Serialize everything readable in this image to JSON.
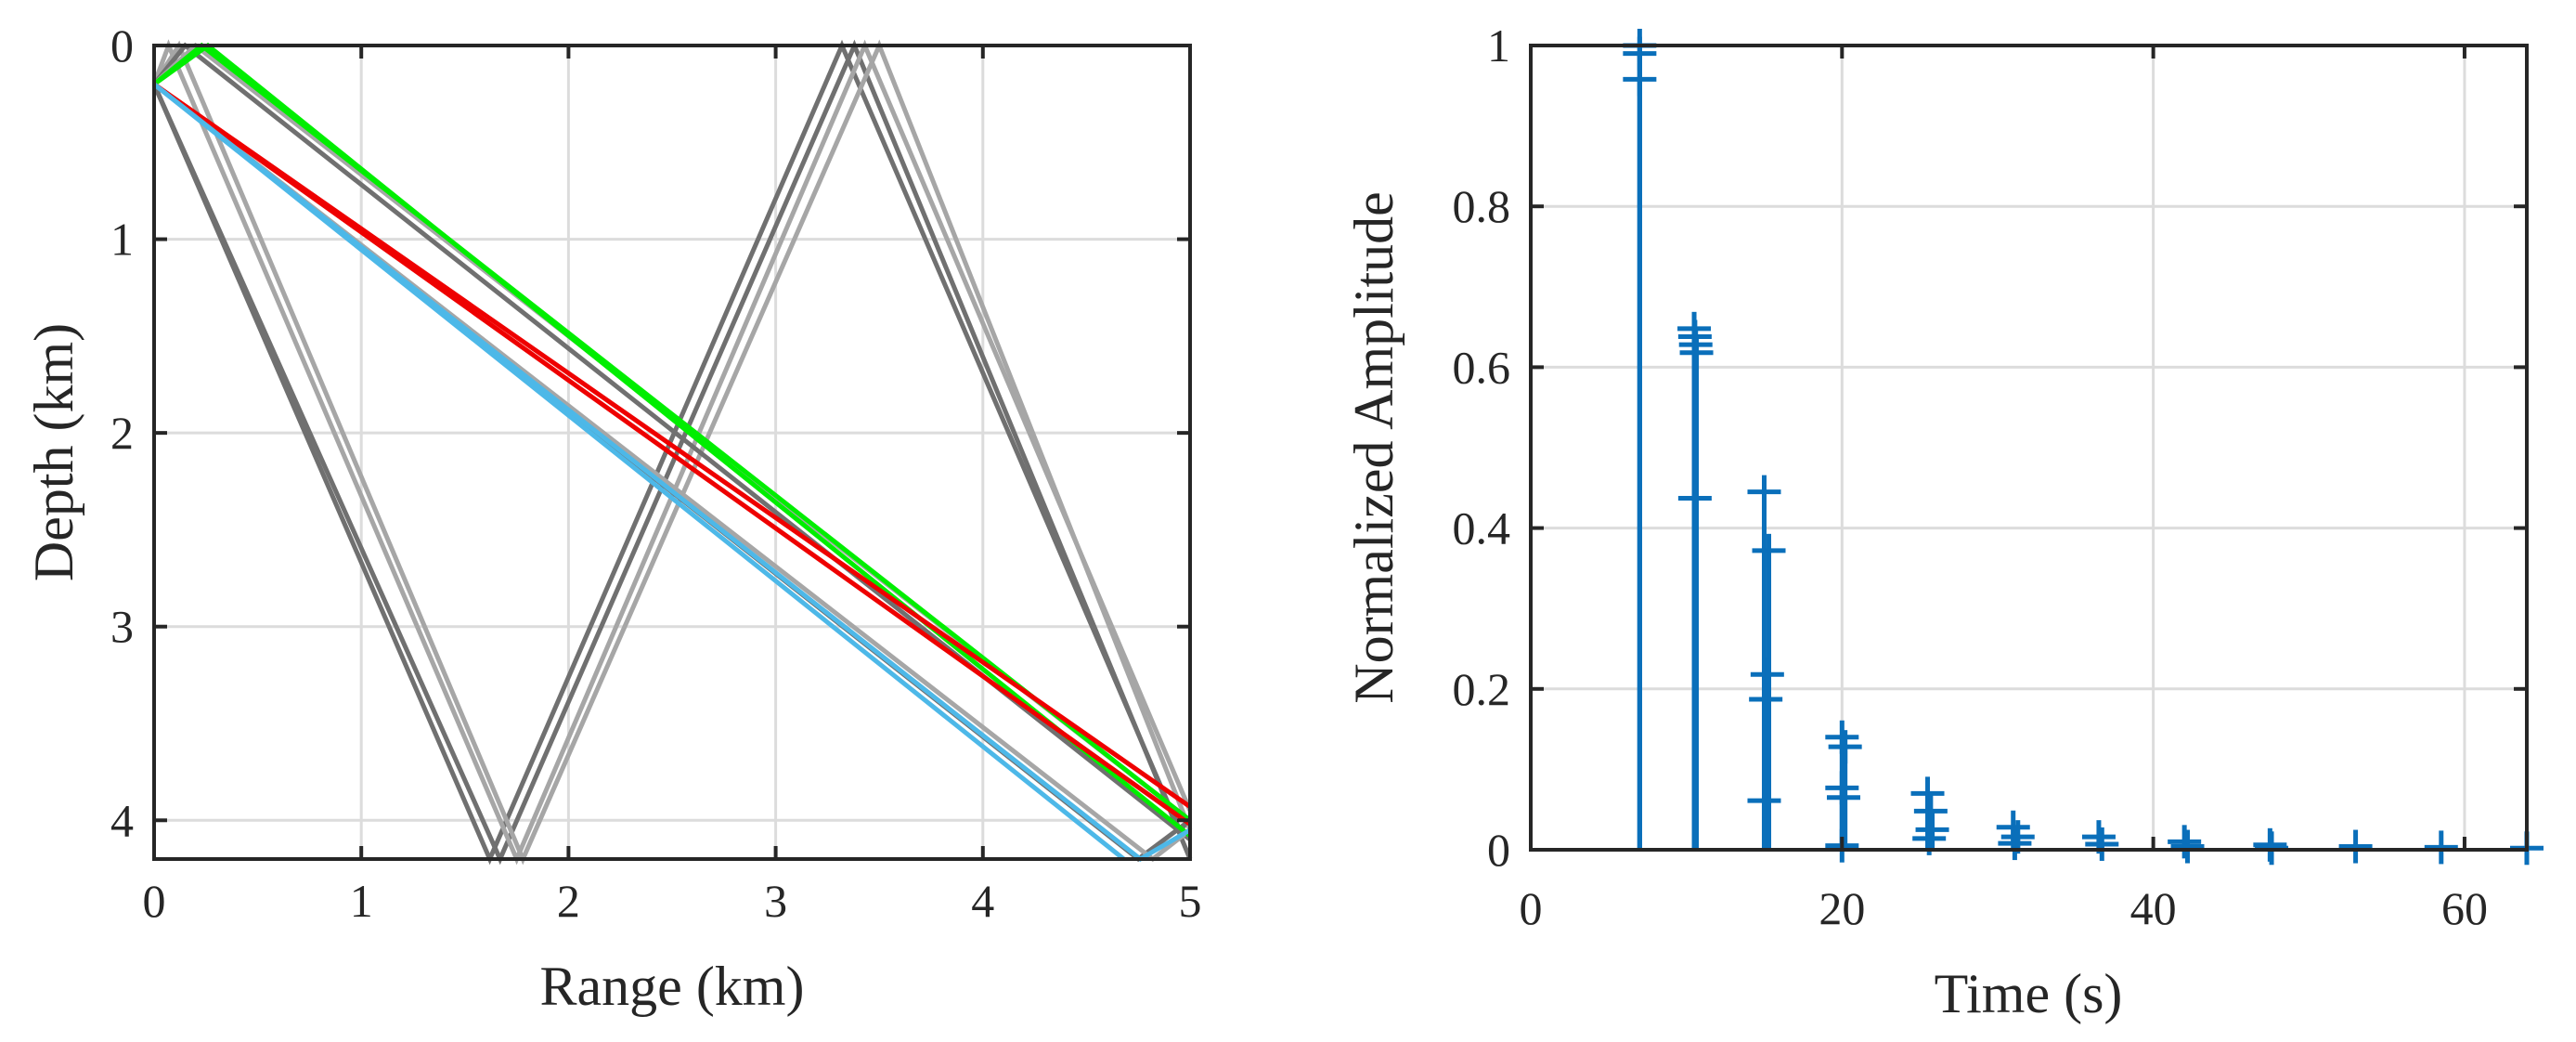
{
  "chart_data": [
    {
      "type": "line",
      "title": "",
      "xlabel": "Range (km)",
      "ylabel": "Depth (km)",
      "xlim": [
        0,
        5
      ],
      "ylim": [
        0,
        4.2
      ],
      "y_reversed": true,
      "grid": true,
      "xticks": [
        "0",
        "1",
        "2",
        "3",
        "4",
        "5"
      ],
      "yticks": [
        "0",
        "1",
        "2",
        "3",
        "4"
      ],
      "colors": {
        "dark_gray": "#707070",
        "light_gray": "#a6a6a6",
        "green": "#00ee00",
        "red": "#ee0000",
        "cyan": "#4db8e8"
      },
      "series": [
        {
          "color": "#707070",
          "x": [
            0,
            1.62,
            3.32,
            4.95,
            5.0
          ],
          "y": [
            0.2,
            4.2,
            0,
            4.05,
            4.0
          ]
        },
        {
          "color": "#707070",
          "x": [
            0,
            1.67,
            3.38,
            5.0
          ],
          "y": [
            0.2,
            4.2,
            0,
            4.2
          ]
        },
        {
          "color": "#a6a6a6",
          "x": [
            0,
            0.07,
            1.75,
            3.43,
            5.0
          ],
          "y": [
            0.2,
            0,
            4.2,
            0,
            3.95
          ]
        },
        {
          "color": "#a6a6a6",
          "x": [
            0,
            0.12,
            1.78,
            3.5,
            5.0
          ],
          "y": [
            0.2,
            0,
            4.2,
            0,
            4.05
          ]
        },
        {
          "color": "#707070",
          "x": [
            0,
            0.15,
            5.0
          ],
          "y": [
            0.2,
            0,
            4.1
          ]
        },
        {
          "color": "#a6a6a6",
          "x": [
            0,
            0.2,
            5.0
          ],
          "y": [
            0.2,
            0,
            4.0
          ]
        },
        {
          "color": "#707070",
          "x": [
            0,
            4.75,
            5.0
          ],
          "y": [
            0.2,
            4.2,
            4.0
          ]
        },
        {
          "color": "#a6a6a6",
          "x": [
            0,
            4.82,
            5.0
          ],
          "y": [
            0.2,
            4.2,
            4.05
          ]
        },
        {
          "color": "#00ee00",
          "x": [
            0,
            0.23,
            5.0
          ],
          "y": [
            0.2,
            0,
            4.0
          ]
        },
        {
          "color": "#00ee00",
          "x": [
            0,
            0.26,
            5.0
          ],
          "y": [
            0.2,
            0,
            4.08
          ]
        },
        {
          "color": "#ee0000",
          "x": [
            0,
            5.0
          ],
          "y": [
            0.2,
            3.93
          ]
        },
        {
          "color": "#ee0000",
          "x": [
            0,
            5.0
          ],
          "y": [
            0.2,
            4.02
          ]
        },
        {
          "color": "#4db8e8",
          "x": [
            0,
            4.68
          ],
          "y": [
            0.2,
            4.2
          ]
        },
        {
          "color": "#4db8e8",
          "x": [
            0,
            4.76,
            5.0
          ],
          "y": [
            0.2,
            4.2,
            4.05
          ]
        }
      ]
    },
    {
      "type": "scatter",
      "style": "stem",
      "marker": "+",
      "title": "",
      "xlabel": "Time (s)",
      "ylabel": "Normalized Amplitude",
      "xlim": [
        0,
        64
      ],
      "ylim": [
        0,
        1
      ],
      "grid": true,
      "xticks": [
        "0",
        "20",
        "40",
        "60"
      ],
      "yticks": [
        "0",
        "0.2",
        "0.4",
        "0.6",
        "0.8",
        "1"
      ],
      "color": "#0a6fba",
      "points": [
        {
          "x": 7.0,
          "y": 1.0
        },
        {
          "x": 7.0,
          "y": 0.99
        },
        {
          "x": 7.0,
          "y": 0.958
        },
        {
          "x": 10.5,
          "y": 0.648
        },
        {
          "x": 10.55,
          "y": 0.638
        },
        {
          "x": 10.6,
          "y": 0.628
        },
        {
          "x": 10.65,
          "y": 0.618
        },
        {
          "x": 10.55,
          "y": 0.437
        },
        {
          "x": 15.0,
          "y": 0.445
        },
        {
          "x": 15.3,
          "y": 0.372
        },
        {
          "x": 15.2,
          "y": 0.218
        },
        {
          "x": 15.1,
          "y": 0.187
        },
        {
          "x": 15.0,
          "y": 0.061
        },
        {
          "x": 20.0,
          "y": 0.14
        },
        {
          "x": 20.2,
          "y": 0.128
        },
        {
          "x": 20.0,
          "y": 0.077
        },
        {
          "x": 20.1,
          "y": 0.065
        },
        {
          "x": 20.0,
          "y": 0.005
        },
        {
          "x": 25.5,
          "y": 0.07
        },
        {
          "x": 25.7,
          "y": 0.048
        },
        {
          "x": 25.8,
          "y": 0.025
        },
        {
          "x": 25.6,
          "y": 0.014
        },
        {
          "x": 31.0,
          "y": 0.028
        },
        {
          "x": 31.3,
          "y": 0.016
        },
        {
          "x": 31.1,
          "y": 0.008
        },
        {
          "x": 36.5,
          "y": 0.016
        },
        {
          "x": 36.7,
          "y": 0.007
        },
        {
          "x": 42.0,
          "y": 0.01
        },
        {
          "x": 42.2,
          "y": 0.004
        },
        {
          "x": 47.5,
          "y": 0.006
        },
        {
          "x": 47.6,
          "y": 0.002
        },
        {
          "x": 53.0,
          "y": 0.004
        },
        {
          "x": 58.5,
          "y": 0.003
        },
        {
          "x": 64.0,
          "y": 0.002
        }
      ]
    }
  ]
}
